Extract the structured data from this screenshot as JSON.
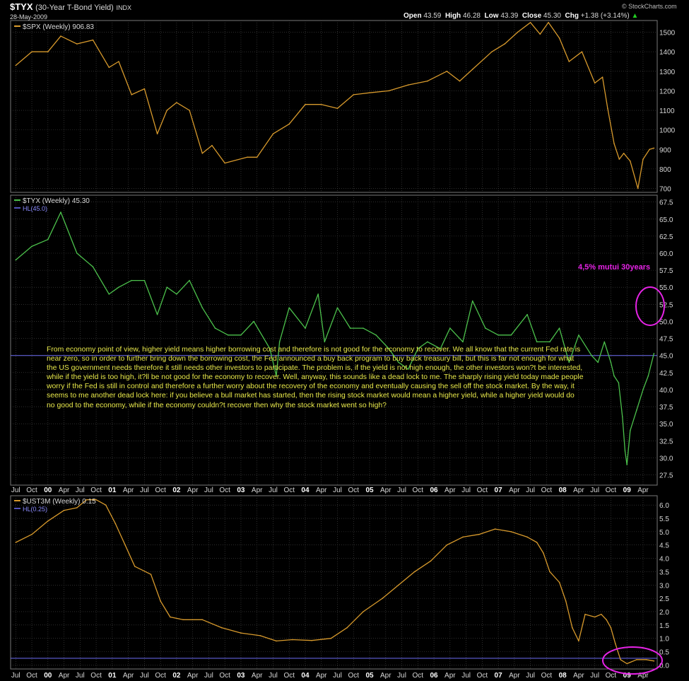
{
  "header": {
    "symbol": "$TYX",
    "name": "(30-Year T-Bond Yield)",
    "exchange": "INDX",
    "date": "28-May-2009",
    "open_label": "Open",
    "open": "43.59",
    "high_label": "High",
    "high": "46.28",
    "low_label": "Low",
    "low": "43.39",
    "close_label": "Close",
    "close": "45.30",
    "chg_label": "Chg",
    "chg": "+1.38 (+3.14%)",
    "brand": "© StockCharts.com"
  },
  "colors": {
    "background": "#000000",
    "grid": "#4a4a4a",
    "spx_line": "#d89a2c",
    "tyx_line": "#4cc24c",
    "ust_line": "#d89a2c",
    "hl_line": "#6e6ef5",
    "annotation": "#e623e6",
    "commentary": "#e8e84a",
    "up_arrow": "#22cc22"
  },
  "annotation": {
    "text": "4,5% mutui 30years"
  },
  "commentary": "From economy point of view, higher yield means higher borrowing cost and therefore is not good for the economy to recover. We all know that the current Fed rate is near zero, so in order to further bring down the borrowing cost, the Fed announced a buy back program to buy back treasury bill, but this is far not enough for what the US government needs therefore it still needs other investors to participate. The problem is, if the yield is not high enough, the other investors won?t be interested, while if the yield is too high, it?ll be not good for the economy to recover. Well, anyway, this sounds like a dead lock to me. The sharply rising yield today made people worry if the Fed is still in control and therefore a further worry about the recovery of the economy and eventually causing the sell off the stock market. By the way, it seems to me another dead lock here: if you believe a bull market has started, then the rising stock market would mean a higher yield, while a higher yield would do no good to the economy, while if the economy couldn?t recover then why the stock market went so high?",
  "x_axis_labels": [
    "Jul",
    "Oct",
    "00",
    "Apr",
    "Jul",
    "Oct",
    "01",
    "Apr",
    "Jul",
    "Oct",
    "02",
    "Apr",
    "Jul",
    "Oct",
    "03",
    "Apr",
    "Jul",
    "Oct",
    "04",
    "Apr",
    "Jul",
    "Oct",
    "05",
    "Apr",
    "Jul",
    "Oct",
    "06",
    "Apr",
    "Jul",
    "Oct",
    "07",
    "Apr",
    "Jul",
    "Oct",
    "08",
    "Apr",
    "Jul",
    "Oct",
    "09",
    "Apr"
  ],
  "chart_data": [
    {
      "type": "line",
      "legend": "$SPX (Weekly) 906.83",
      "series": [
        {
          "name": "$SPX (Weekly)",
          "x": [
            1999.5,
            1999.75,
            2000.0,
            2000.2,
            2000.45,
            2000.7,
            2000.95,
            2001.1,
            2001.3,
            2001.5,
            2001.7,
            2001.85,
            2002.0,
            2002.2,
            2002.4,
            2002.55,
            2002.75,
            2003.1,
            2003.25,
            2003.5,
            2003.75,
            2004.0,
            2004.25,
            2004.5,
            2004.75,
            2005.0,
            2005.3,
            2005.6,
            2005.9,
            2006.2,
            2006.4,
            2006.6,
            2006.9,
            2007.1,
            2007.3,
            2007.5,
            2007.65,
            2007.78,
            2007.95,
            2008.1,
            2008.3,
            2008.5,
            2008.62,
            2008.7,
            2008.8,
            2008.88,
            2008.95,
            2009.05,
            2009.17,
            2009.25,
            2009.35,
            2009.42
          ],
          "values": [
            1330,
            1400,
            1400,
            1480,
            1440,
            1460,
            1320,
            1350,
            1180,
            1210,
            980,
            1100,
            1140,
            1100,
            880,
            920,
            830,
            860,
            860,
            980,
            1030,
            1130,
            1130,
            1110,
            1180,
            1190,
            1200,
            1230,
            1250,
            1300,
            1250,
            1310,
            1400,
            1440,
            1500,
            1550,
            1490,
            1550,
            1470,
            1350,
            1400,
            1240,
            1270,
            1110,
            930,
            850,
            880,
            840,
            700,
            850,
            900,
            906.83
          ]
        }
      ],
      "ylim": [
        680,
        1560
      ],
      "ticks": [
        700,
        800,
        900,
        1000,
        1100,
        1200,
        1300,
        1400,
        1500
      ]
    },
    {
      "type": "line",
      "legend": "$TYX (Weekly) 45.30",
      "hl_legend": "HL(45.0)",
      "hl_value": 45.0,
      "series": [
        {
          "name": "$TYX (Weekly)",
          "x": [
            1999.5,
            1999.75,
            2000.0,
            2000.2,
            2000.45,
            2000.7,
            2000.95,
            2001.1,
            2001.3,
            2001.5,
            2001.7,
            2001.85,
            2002.0,
            2002.2,
            2002.4,
            2002.6,
            2002.8,
            2003.0,
            2003.2,
            2003.45,
            2003.55,
            2003.6,
            2003.75,
            2004.0,
            2004.2,
            2004.3,
            2004.5,
            2004.7,
            2004.9,
            2005.1,
            2005.3,
            2005.45,
            2005.6,
            2005.75,
            2005.9,
            2006.1,
            2006.25,
            2006.45,
            2006.6,
            2006.8,
            2007.0,
            2007.2,
            2007.45,
            2007.6,
            2007.8,
            2007.95,
            2008.1,
            2008.25,
            2008.45,
            2008.55,
            2008.65,
            2008.75,
            2008.8,
            2008.87,
            2008.93,
            2008.97,
            2009.0,
            2009.05,
            2009.15,
            2009.25,
            2009.33,
            2009.42
          ],
          "values": [
            59,
            61,
            62,
            66,
            60,
            58,
            54,
            55,
            56,
            56,
            51,
            55,
            54,
            56,
            52,
            49,
            48,
            48,
            50,
            46,
            42,
            47,
            52,
            49,
            54,
            47,
            52,
            49,
            49,
            48,
            46,
            44,
            43,
            46,
            47,
            46,
            49,
            47,
            53,
            49,
            48,
            48,
            51,
            47,
            47,
            49,
            44,
            48,
            45,
            44,
            47,
            44,
            42,
            41,
            36,
            31,
            29,
            34,
            37,
            40,
            42,
            45.3
          ]
        }
      ],
      "ylim": [
        26,
        68.5
      ],
      "ticks": [
        27.5,
        30.0,
        32.5,
        35.0,
        37.5,
        40.0,
        42.5,
        45.0,
        47.5,
        50.0,
        52.5,
        55.0,
        57.5,
        60.0,
        62.5,
        65.0,
        67.5
      ]
    },
    {
      "type": "line",
      "legend": "$UST3M (Weekly) 0.15",
      "hl_legend": "HL(0.25)",
      "hl_value": 0.25,
      "series": [
        {
          "name": "$UST3M (Weekly)",
          "x": [
            1999.5,
            1999.75,
            2000.0,
            2000.25,
            2000.45,
            2000.6,
            2000.75,
            2000.9,
            2001.05,
            2001.2,
            2001.35,
            2001.6,
            2001.75,
            2001.9,
            2002.1,
            2002.4,
            2002.7,
            2003.0,
            2003.3,
            2003.55,
            2003.8,
            2004.1,
            2004.4,
            2004.65,
            2004.9,
            2005.2,
            2005.45,
            2005.7,
            2005.95,
            2006.2,
            2006.45,
            2006.7,
            2006.95,
            2007.2,
            2007.45,
            2007.6,
            2007.7,
            2007.8,
            2007.95,
            2008.05,
            2008.15,
            2008.25,
            2008.35,
            2008.5,
            2008.6,
            2008.68,
            2008.75,
            2008.82,
            2008.9,
            2009.0,
            2009.15,
            2009.3,
            2009.42
          ],
          "values": [
            4.6,
            4.9,
            5.4,
            5.8,
            5.9,
            6.2,
            6.2,
            6.0,
            5.3,
            4.5,
            3.7,
            3.4,
            2.4,
            1.8,
            1.7,
            1.7,
            1.4,
            1.2,
            1.1,
            0.9,
            0.95,
            0.92,
            1.0,
            1.4,
            2.0,
            2.5,
            3.0,
            3.5,
            3.9,
            4.5,
            4.8,
            4.9,
            5.1,
            5.0,
            4.8,
            4.6,
            4.2,
            3.5,
            3.1,
            2.4,
            1.4,
            0.9,
            1.9,
            1.8,
            1.9,
            1.7,
            1.4,
            0.8,
            0.2,
            0.05,
            0.2,
            0.2,
            0.15
          ]
        }
      ],
      "ylim": [
        -0.15,
        6.35
      ],
      "ticks": [
        0.0,
        0.5,
        1.0,
        1.5,
        2.0,
        2.5,
        3.0,
        3.5,
        4.0,
        4.5,
        5.0,
        5.5,
        6.0
      ]
    }
  ]
}
